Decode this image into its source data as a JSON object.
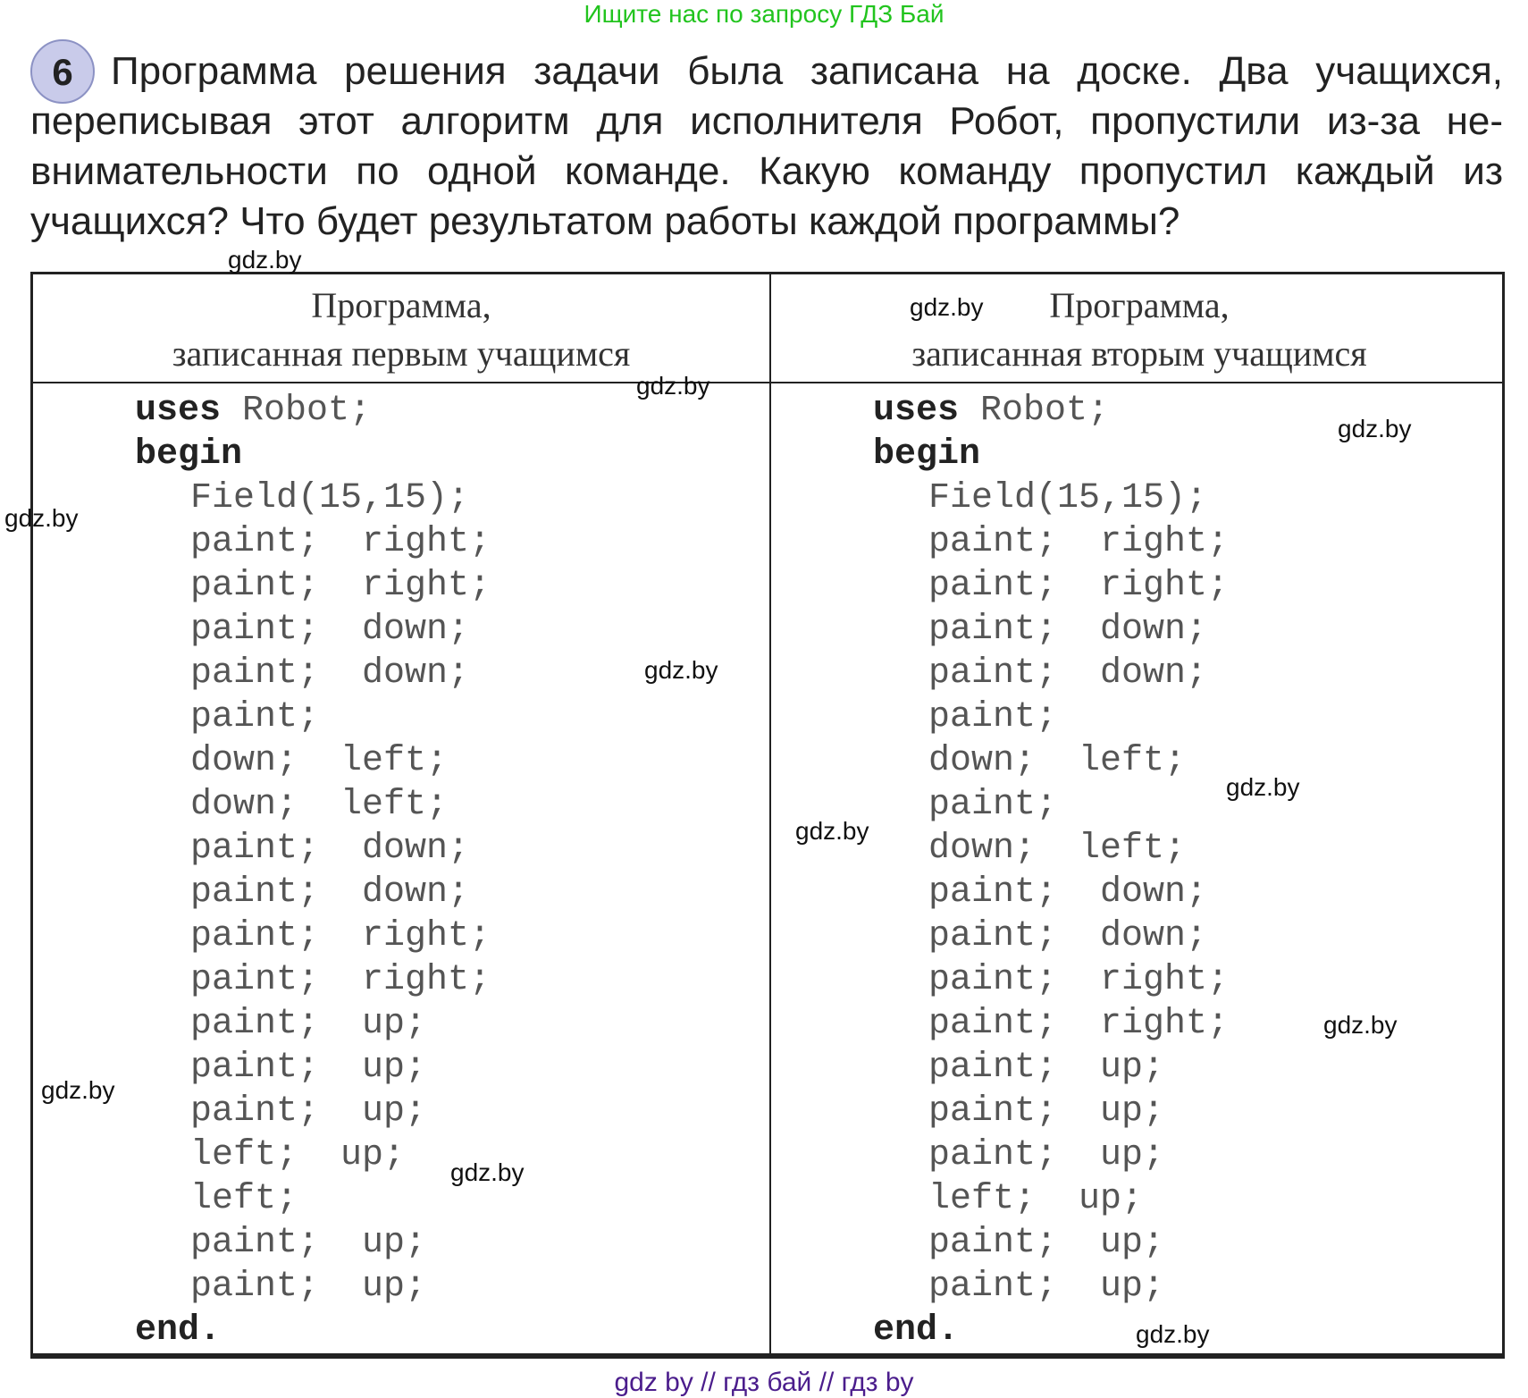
{
  "top_note": "Ищите нас по запросу ГДЗ Бай",
  "task_number": "6",
  "question_lines": [
    "Программа решения задачи была записана на доске. Два учащихся,",
    "переписывая этот алгоритм для исполнителя Робот, пропустили из-за не-",
    "внимательности по одной команде. Какую команду пропустил каждый из",
    "учащихся? Что будет результатом работы каждой программы?"
  ],
  "columns": [
    {
      "header": [
        "Программа,",
        "записанная первым учащимся"
      ],
      "uses": "uses",
      "uses_arg": " Robot;",
      "begin": "begin",
      "end": "end.",
      "lines": [
        "Field(15,15);",
        "paint;  right;",
        "paint;  right;",
        "paint;  down;",
        "paint;  down;",
        "paint;",
        "down;  left;",
        "down;  left;",
        "paint;  down;",
        "paint;  down;",
        "paint;  right;",
        "paint;  right;",
        "paint;  up;",
        "paint;  up;",
        "paint;  up;",
        "left;  up;",
        "left;",
        "paint;  up;",
        "paint;  up;"
      ]
    },
    {
      "header": [
        "Программа,",
        "записанная вторым учащимся"
      ],
      "uses": "uses",
      "uses_arg": " Robot;",
      "begin": "begin",
      "end": "end.",
      "lines": [
        "Field(15,15);",
        "paint;  right;",
        "paint;  right;",
        "paint;  down;",
        "paint;  down;",
        "paint;",
        "down;  left;",
        "paint;",
        "down;  left;",
        "paint;  down;",
        "paint;  down;",
        "paint;  right;",
        "paint;  right;",
        "paint;  up;",
        "paint;  up;",
        "paint;  up;",
        "left;  up;",
        "paint;  up;",
        "paint;  up;"
      ]
    }
  ],
  "watermark": "gdz.by",
  "bottom_note": "gdz by  //  гдз бай  //  гдз by"
}
